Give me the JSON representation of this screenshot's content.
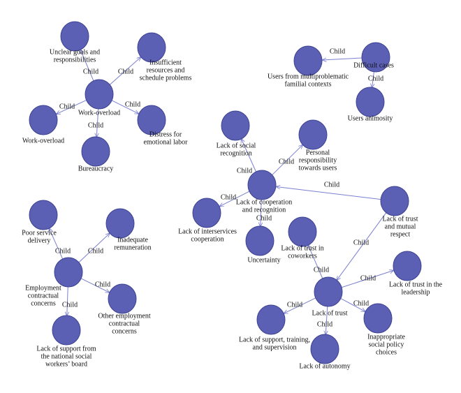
{
  "nodes": [
    {
      "label": [
        "Work-overload"
      ]
    },
    {
      "label": [
        "Unclear goals and",
        "responsibilities"
      ]
    },
    {
      "label": [
        "Insufficient",
        "resources and",
        "schedule problems"
      ]
    },
    {
      "label": [
        "Work-overload"
      ]
    },
    {
      "label": [
        "Distress for",
        "emotional labor"
      ]
    },
    {
      "label": [
        "Bureaucracy"
      ]
    },
    {
      "label": [
        "Difficult cases"
      ]
    },
    {
      "label": [
        "Users from multiproblematic",
        "familial contexts"
      ]
    },
    {
      "label": [
        "Users animosity"
      ]
    },
    {
      "label": [
        "Employment",
        "contractual",
        "concerns"
      ]
    },
    {
      "label": [
        "Poor service",
        "delivery"
      ]
    },
    {
      "label": [
        "Inadequate",
        "remuneration"
      ]
    },
    {
      "label": [
        "Other employment",
        "contractual",
        "concerns"
      ]
    },
    {
      "label": [
        "Lack of support from",
        "the national social",
        "workers’ board"
      ]
    },
    {
      "label": [
        "Lack of cooperation",
        "and recognition"
      ]
    },
    {
      "label": [
        "Lack of social",
        "recognition"
      ]
    },
    {
      "label": [
        "Personal",
        "responsibility",
        "towards users"
      ]
    },
    {
      "label": [
        "Lack of interservices",
        "cooperation"
      ]
    },
    {
      "label": [
        "Uncertainty"
      ]
    },
    {
      "label": [
        "Lack of trust",
        "and mutual",
        "respect"
      ]
    },
    {
      "label": [
        "Lack of trust in",
        "coworkers"
      ]
    },
    {
      "label": [
        "Lack of trust"
      ]
    },
    {
      "label": [
        "Lack of trust in the",
        "leadership"
      ]
    },
    {
      "label": [
        "Lack of support, training,",
        "and supervision"
      ]
    },
    {
      "label": [
        "Inappropriate",
        "social policy",
        "choices"
      ]
    },
    {
      "label": [
        "Lack of autonomy"
      ]
    }
  ],
  "edges": [
    {
      "label": "Child"
    },
    {
      "label": "Child"
    },
    {
      "label": "Child"
    },
    {
      "label": "Child"
    },
    {
      "label": "Child"
    },
    {
      "label": "Child"
    },
    {
      "label": "Child"
    },
    {
      "label": "Child"
    },
    {
      "label": "Child"
    },
    {
      "label": "Child"
    },
    {
      "label": "Child"
    },
    {
      "label": "Child"
    },
    {
      "label": "Child"
    },
    {
      "label": "Child"
    },
    {
      "label": "Child"
    },
    {
      "label": "Child"
    },
    {
      "label": "Child"
    },
    {
      "label": "Child"
    },
    {
      "label": "Child"
    },
    {
      "label": "Child"
    },
    {
      "label": "Child"
    },
    {
      "label": "Child"
    }
  ]
}
